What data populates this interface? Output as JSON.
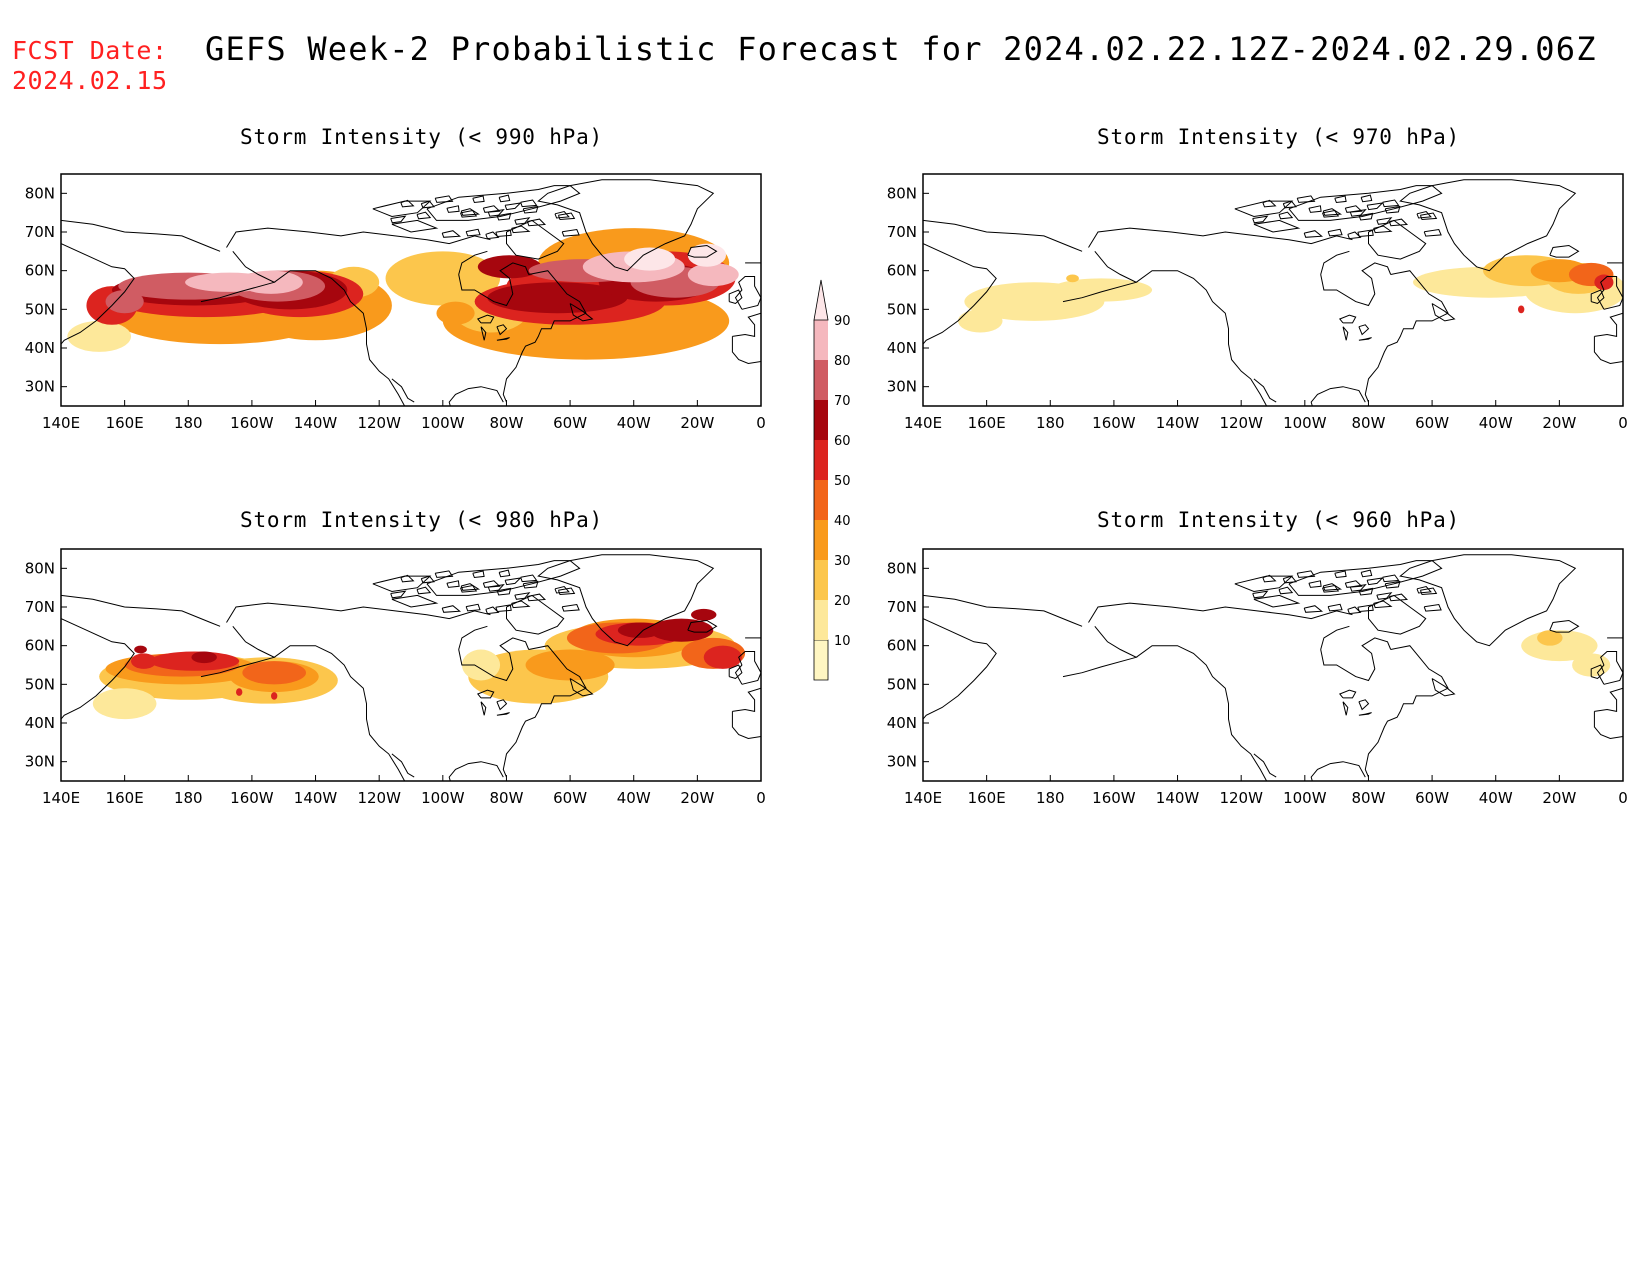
{
  "header": {
    "fcst_label": "FCST Date:",
    "fcst_date": "2024.02.15",
    "title": "GEFS Week-2 Probabilistic Forecast for 2024.02.22.12Z-2024.02.29.06Z"
  },
  "axes": {
    "lon_ticks": [
      "140E",
      "160E",
      "180",
      "160W",
      "140W",
      "120W",
      "100W",
      "80W",
      "60W",
      "40W",
      "20W",
      "0"
    ],
    "lat_ticks": [
      "80N",
      "70N",
      "60N",
      "50N",
      "40N",
      "30N"
    ]
  },
  "colorbar": {
    "levels": [
      "10",
      "20",
      "30",
      "40",
      "50",
      "60",
      "70",
      "80",
      "90"
    ],
    "colors": [
      "#fff6c2",
      "#fde89a",
      "#fcc64c",
      "#f99a1c",
      "#f2651a",
      "#dc241f",
      "#a6060e",
      "#d05c63",
      "#f5b8be",
      "#fde6e8"
    ]
  },
  "panels": [
    {
      "id": "p990",
      "title": "Storm Intensity (< 990 hPa)"
    },
    {
      "id": "p970",
      "title": "Storm Intensity (< 970 hPa)"
    },
    {
      "id": "p980",
      "title": "Storm Intensity (< 980 hPa)"
    },
    {
      "id": "p960",
      "title": "Storm Intensity (< 960 hPa)"
    }
  ]
}
